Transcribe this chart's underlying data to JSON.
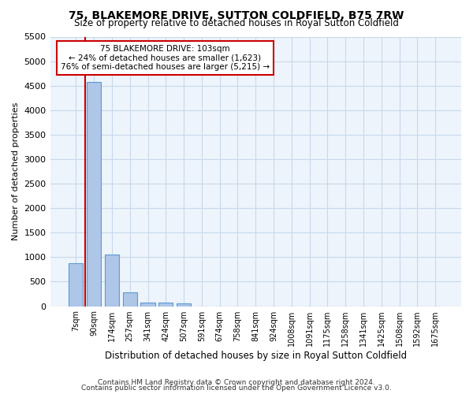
{
  "title": "75, BLAKEMORE DRIVE, SUTTON COLDFIELD, B75 7RW",
  "subtitle": "Size of property relative to detached houses in Royal Sutton Coldfield",
  "xlabel": "Distribution of detached houses by size in Royal Sutton Coldfield",
  "ylabel": "Number of detached properties",
  "footnote1": "Contains HM Land Registry data © Crown copyright and database right 2024.",
  "footnote2": "Contains public sector information licensed under the Open Government Licence v3.0.",
  "bar_color": "#aec6e8",
  "bar_edge_color": "#5b9bd5",
  "grid_color": "#c8d8ea",
  "bg_color": "#eef4fb",
  "vline_color": "#cc0000",
  "vline_x": 0.5,
  "annotation_box_color": "#cc0000",
  "annotation_text_line1": "75 BLAKEMORE DRIVE: 103sqm",
  "annotation_text_line2": "← 24% of detached houses are smaller (1,623)",
  "annotation_text_line3": "76% of semi-detached houses are larger (5,215) →",
  "categories": [
    "7sqm",
    "90sqm",
    "174sqm",
    "257sqm",
    "341sqm",
    "424sqm",
    "507sqm",
    "591sqm",
    "674sqm",
    "758sqm",
    "841sqm",
    "924sqm",
    "1008sqm",
    "1091sqm",
    "1175sqm",
    "1258sqm",
    "1341sqm",
    "1425sqm",
    "1508sqm",
    "1592sqm",
    "1675sqm"
  ],
  "values": [
    880,
    4570,
    1060,
    275,
    80,
    70,
    50,
    0,
    0,
    0,
    0,
    0,
    0,
    0,
    0,
    0,
    0,
    0,
    0,
    0,
    0
  ],
  "ylim": [
    0,
    5500
  ],
  "yticks": [
    0,
    500,
    1000,
    1500,
    2000,
    2500,
    3000,
    3500,
    4000,
    4500,
    5000,
    5500
  ]
}
